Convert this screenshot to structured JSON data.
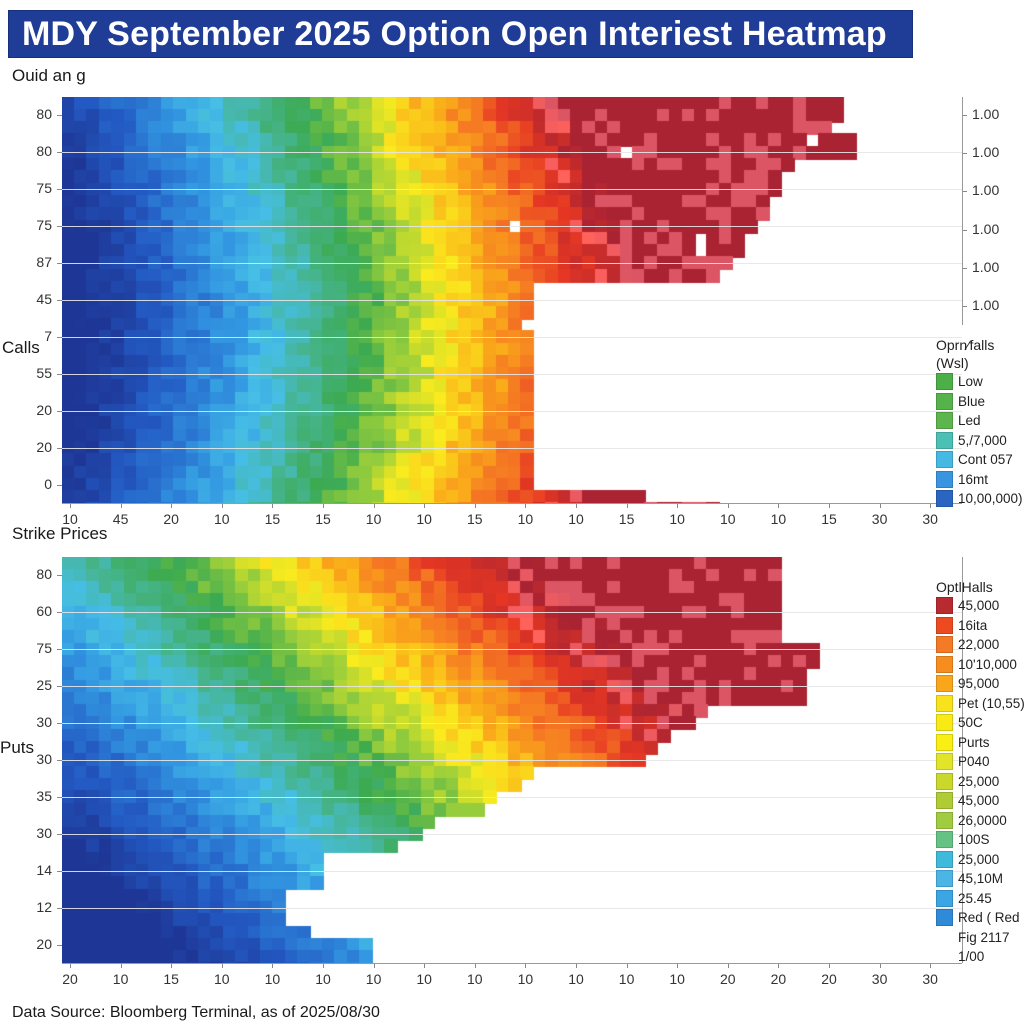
{
  "header": {
    "title": "MDY September 2025 Option Open Interiest Heatmap",
    "subtitle": "Ouid an g",
    "title_bg_color": "#1f3c96"
  },
  "top_panel": {
    "y_axis_label": "Calls",
    "y_ticks": [
      "80",
      "80",
      "75",
      "75",
      "87",
      "45",
      "7",
      "55",
      "20",
      "20",
      "0"
    ],
    "x_ticks": [
      "10",
      "45",
      "20",
      "10",
      "15",
      "15",
      "10",
      "10",
      "15",
      "10",
      "10",
      "15",
      "10",
      "10",
      "10",
      "15",
      "30",
      "30"
    ],
    "right_ticks": [
      "1.00",
      "1.00",
      "1.00",
      "1.00",
      "1.00",
      "1.00"
    ],
    "legend": {
      "title_line1": "Oprn⁄falls",
      "title_line2": "(Wsl)",
      "items": [
        {
          "label": "Low",
          "color": "#4caf47"
        },
        {
          "label": "Blue",
          "color": "#56b24a"
        },
        {
          "label": "Led",
          "color": "#5db54d"
        },
        {
          "label": "5,/7,000",
          "color": "#4cc0b4"
        },
        {
          "label": "Cont 057",
          "color": "#45b9e3"
        },
        {
          "label": "16mt",
          "color": "#3a95e0"
        },
        {
          "label": "10,00,000)",
          "color": "#2a66c1"
        }
      ]
    }
  },
  "x_axis_title": "Strike Prices",
  "bottom_panel": {
    "y_axis_label": "Puts",
    "y_ticks": [
      "80",
      "60",
      "75",
      "25",
      "30",
      "30",
      "35",
      "30",
      "14",
      "12",
      "20"
    ],
    "x_ticks": [
      "20",
      "10",
      "15",
      "10",
      "10",
      "10",
      "10",
      "10",
      "10",
      "10",
      "10",
      "10",
      "10",
      "20",
      "20",
      "20",
      "30",
      "30"
    ],
    "legend": {
      "title": "OptlHalls",
      "items": [
        {
          "label": "45,000",
          "color": "#b82a2f"
        },
        {
          "label": "16ita",
          "color": "#ee4a22"
        },
        {
          "label": "22,000",
          "color": "#f57a25"
        },
        {
          "label": "10'10,000",
          "color": "#f78d1f"
        },
        {
          "label": "95,000",
          "color": "#f9a61b"
        },
        {
          "label": "Pet (10,55)",
          "color": "#f7e21c"
        },
        {
          "label": "50C",
          "color": "#f9ea16"
        },
        {
          "label": "Purts",
          "color": "#f9ef12"
        },
        {
          "label": "P040",
          "color": "#e1e428"
        },
        {
          "label": "25,000",
          "color": "#cad72b"
        },
        {
          "label": "45,000",
          "color": "#b0cc35"
        },
        {
          "label": "26,0000",
          "color": "#9fcd3f"
        },
        {
          "label": "100S",
          "color": "#66c184"
        },
        {
          "label": "25,000",
          "color": "#3fbadb"
        },
        {
          "label": "45,10M",
          "color": "#4bb5e6"
        },
        {
          "label": "25.45",
          "color": "#3aa6e3"
        },
        {
          "label": "Red ( Red",
          "color": "#2f8ad8"
        }
      ],
      "extra": [
        "Fig 2117",
        "1/00"
      ]
    }
  },
  "footer": {
    "source": "Data Source: Bloomberg Terminal, as of 2025/08/30"
  },
  "chart_data": [
    {
      "type": "heatmap",
      "title": "MDY September 2025 Option Open Interiest Heatmap — Calls",
      "xlabel": "Strike Prices",
      "ylabel": "Calls",
      "x_tick_labels": [
        "10",
        "45",
        "20",
        "10",
        "15",
        "15",
        "10",
        "10",
        "15",
        "10",
        "10",
        "15",
        "10",
        "10",
        "10",
        "15",
        "30",
        "30"
      ],
      "y_tick_labels": [
        "80",
        "80",
        "75",
        "75",
        "87",
        "45",
        "7",
        "55",
        "20",
        "20",
        "0"
      ],
      "right_axis_labels": [
        "1.00",
        "1.00",
        "1.00",
        "1.00",
        "1.00",
        "1.00"
      ],
      "colorscale": [
        "#1f3c96",
        "#2a66c1",
        "#45b9e3",
        "#4caf47",
        "#f9ef12",
        "#f78d1f",
        "#ee4a22",
        "#b82a2f"
      ],
      "description": "Open interest rises from low (blue) at left strikes to high (dark red) near the center-right; a C-shaped empty region occupies the right-middle; data ends near x≈850.",
      "grid": true,
      "legend_position": "right"
    },
    {
      "type": "heatmap",
      "title": "MDY September 2025 Option Open Interiest Heatmap — Puts",
      "xlabel": "",
      "ylabel": "Puts",
      "x_tick_labels": [
        "20",
        "10",
        "15",
        "10",
        "10",
        "10",
        "10",
        "10",
        "10",
        "10",
        "10",
        "10",
        "10",
        "20",
        "20",
        "20",
        "30",
        "30"
      ],
      "y_tick_labels": [
        "80",
        "60",
        "75",
        "25",
        "30",
        "30",
        "35",
        "30",
        "14",
        "12",
        "20"
      ],
      "colorscale": [
        "#1f3c96",
        "#2a66c1",
        "#45b9e3",
        "#4caf47",
        "#f9ef12",
        "#f78d1f",
        "#ee4a22",
        "#b82a2f"
      ],
      "description": "Open interest is blue at bottom-left, transitions through green and yellow to dark red at top-center-right; lower-right triangle is empty.",
      "grid": true,
      "legend_position": "right"
    }
  ]
}
